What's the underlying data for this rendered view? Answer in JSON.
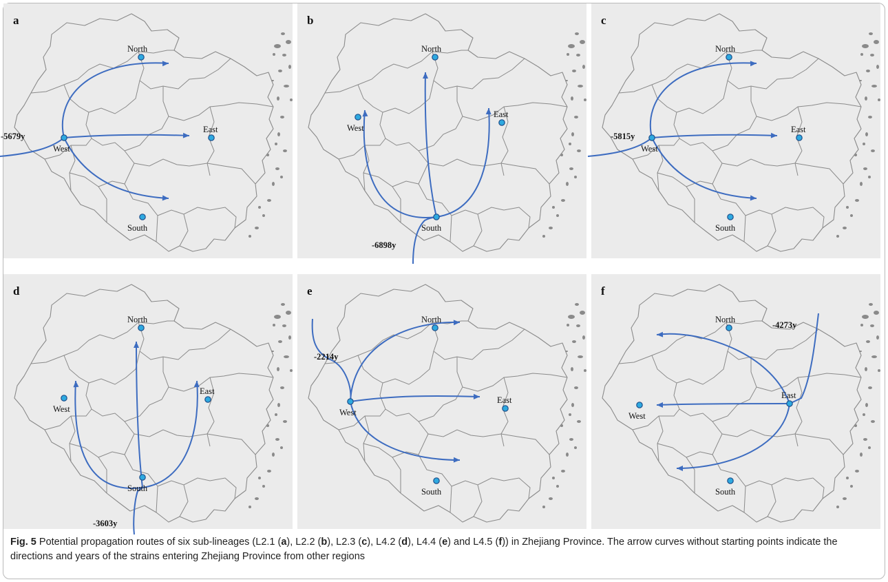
{
  "figure": {
    "caption_label": "Fig. 5",
    "caption_parts": [
      {
        "text": "  Potential propagation routes of six sub-lineages (L2.1 (",
        "bold": false
      },
      {
        "text": "a",
        "bold": true
      },
      {
        "text": "), L2.2 (",
        "bold": false
      },
      {
        "text": "b",
        "bold": true
      },
      {
        "text": "), L2.3 (",
        "bold": false
      },
      {
        "text": "c",
        "bold": true
      },
      {
        "text": "), L4.2 (",
        "bold": false
      },
      {
        "text": "d",
        "bold": true
      },
      {
        "text": "), L4.4 (",
        "bold": false
      },
      {
        "text": "e",
        "bold": true
      },
      {
        "text": ") and L4.5 (",
        "bold": false
      },
      {
        "text": "f",
        "bold": true
      },
      {
        "text": ")) in Zhejiang Province. The arrow curves without starting points indicate the directions and years of the strains entering Zhejiang Province from other regions",
        "bold": false
      }
    ]
  },
  "regions": {
    "north": "North",
    "east": "East",
    "west": "West",
    "south": "South"
  },
  "colors": {
    "route": "#3d6cc0",
    "node_fill": "#2ea9e0",
    "panel_bg": "#ebebeb",
    "border": "#8a8a8a"
  },
  "panels": [
    {
      "letter": "a",
      "origin": "West",
      "entry_year": "-5679y",
      "entry_direction": "from west",
      "destinations": [
        "North",
        "East",
        "South"
      ]
    },
    {
      "letter": "b",
      "origin": "South",
      "entry_year": "-6898y",
      "entry_direction": "from south",
      "destinations": [
        "West",
        "North",
        "East"
      ]
    },
    {
      "letter": "c",
      "origin": "West",
      "entry_year": "-5815y",
      "entry_direction": "from west",
      "destinations": [
        "North",
        "East",
        "South"
      ]
    },
    {
      "letter": "d",
      "origin": "South",
      "entry_year": "-3603y",
      "entry_direction": "from south",
      "destinations": [
        "West",
        "North",
        "East"
      ]
    },
    {
      "letter": "e",
      "origin": "West",
      "entry_year": "-2214y",
      "entry_direction": "from northwest",
      "destinations": [
        "North",
        "East",
        "South"
      ]
    },
    {
      "letter": "f",
      "origin": "East",
      "entry_year": "-4273y",
      "entry_direction": "from north",
      "destinations": [
        "West",
        "North-west",
        "South-west"
      ]
    }
  ]
}
